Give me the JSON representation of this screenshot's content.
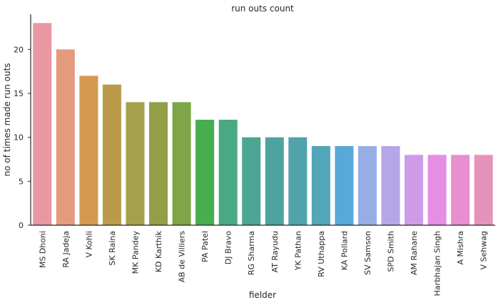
{
  "chart_data": {
    "type": "bar",
    "title": "run outs count",
    "xlabel": "fielder",
    "ylabel": "no of times made run outs",
    "ylim": [
      0,
      24
    ],
    "yticks": [
      0,
      5,
      10,
      15,
      20
    ],
    "grid": false,
    "categories": [
      "MS Dhoni",
      "RA Jadeja",
      "V Kohli",
      "SK Raina",
      "MK Pandey",
      "KD Karthik",
      "AB de Villiers",
      "PA Patel",
      "DJ Bravo",
      "RG Sharma",
      "AT Rayudu",
      "YK Pathan",
      "RV Uthappa",
      "KA Pollard",
      "SV Samson",
      "SPD Smith",
      "AM Rahane",
      "Harbhajan Singh",
      "A Mishra",
      "V Sehwag"
    ],
    "values": [
      23,
      20,
      17,
      16,
      14,
      14,
      14,
      12,
      12,
      10,
      10,
      10,
      9,
      9,
      9,
      9,
      8,
      8,
      8,
      8
    ],
    "colors": [
      "#ea96a3",
      "#e59a7e",
      "#d5994f",
      "#bb9b49",
      "#a6a04b",
      "#939f47",
      "#7ea548",
      "#48ad4f",
      "#4aa883",
      "#4ca592",
      "#4ea39f",
      "#51a3ab",
      "#53a5b8",
      "#58a8d9",
      "#97ade5",
      "#b5a6e8",
      "#cd9be8",
      "#e68de6",
      "#e78fd0",
      "#e693bb"
    ]
  }
}
